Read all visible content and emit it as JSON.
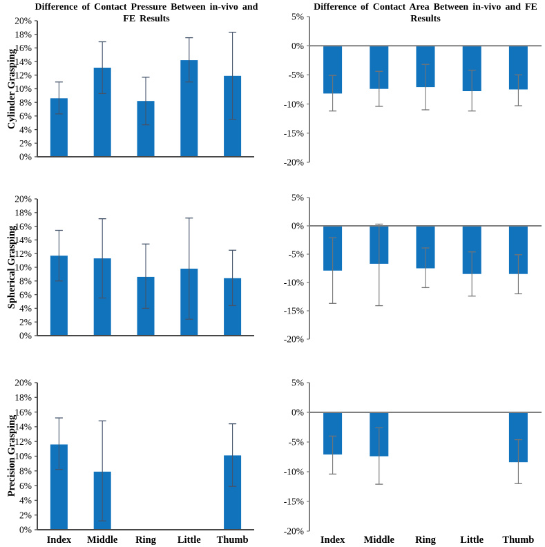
{
  "page": {
    "background": "#ffffff"
  },
  "chart_data": {
    "type": "bar",
    "categories": [
      "Index",
      "Middle",
      "Ring",
      "Little",
      "Thumb"
    ],
    "bar_color": "#1273bd",
    "columns": [
      {
        "id": "pressure",
        "title_line1": "Difference of Contact Pressure Between in-vivo and",
        "title_line2": "FE Results",
        "ylim": [
          0,
          20
        ],
        "ytick_step": 2,
        "ytick_labels": [
          "20%",
          "18%",
          "16%",
          "14%",
          "12%",
          "10%",
          "8%",
          "6%",
          "4%",
          "2%",
          "0%"
        ],
        "axis_color": "#474747",
        "error_color": "#44546a",
        "grid": false,
        "legend": "none"
      },
      {
        "id": "area",
        "title_line1": "Difference of Contact Area Between in-vivo and FE",
        "title_line2": "Results",
        "ylim": [
          -20,
          5
        ],
        "ytick_step": 5,
        "ytick_labels": [
          "5%",
          "0%",
          "-5%",
          "-10%",
          "-15%",
          "-20%"
        ],
        "axis_color": "#7f7f7f",
        "error_color": "#737373",
        "grid": false,
        "legend": "none"
      }
    ],
    "rows": [
      {
        "label": "Cylinder Grasping",
        "pressure": {
          "values": [
            8.6,
            13.1,
            8.2,
            14.2,
            11.9
          ],
          "err_high": [
            11.0,
            16.9,
            11.7,
            17.5,
            18.3
          ],
          "err_low": [
            6.3,
            9.3,
            4.7,
            11.0,
            5.5
          ]
        },
        "area": {
          "values": [
            -8.2,
            -7.4,
            -7.1,
            -7.8,
            -7.5
          ],
          "err_high": [
            -5.1,
            -4.4,
            -3.2,
            -4.2,
            -5.0
          ],
          "err_low": [
            -11.2,
            -10.4,
            -11.0,
            -11.2,
            -10.3
          ]
        }
      },
      {
        "label": "Spherical Grasping",
        "pressure": {
          "values": [
            11.7,
            11.3,
            8.6,
            9.8,
            8.4
          ],
          "err_high": [
            15.4,
            17.1,
            13.4,
            17.2,
            12.5
          ],
          "err_low": [
            8.0,
            5.5,
            4.0,
            2.4,
            4.4
          ]
        },
        "area": {
          "values": [
            -7.9,
            -6.7,
            -7.5,
            -8.5,
            -8.5
          ],
          "err_high": [
            -2.1,
            0.3,
            -3.9,
            -4.6,
            -5.1
          ],
          "err_low": [
            -13.7,
            -14.1,
            -10.9,
            -12.4,
            -12.0
          ]
        }
      },
      {
        "label": "Precision Grasping",
        "pressure": {
          "values": [
            11.6,
            7.9,
            0,
            0,
            10.1
          ],
          "err_high": [
            15.2,
            14.8,
            null,
            null,
            14.4
          ],
          "err_low": [
            8.2,
            1.2,
            null,
            null,
            5.9
          ]
        },
        "area": {
          "values": [
            -7.1,
            -7.4,
            0,
            0,
            -8.4
          ],
          "err_high": [
            -4.0,
            -2.6,
            null,
            null,
            -4.6
          ],
          "err_low": [
            -10.4,
            -12.1,
            null,
            null,
            -12.0
          ]
        }
      }
    ]
  }
}
